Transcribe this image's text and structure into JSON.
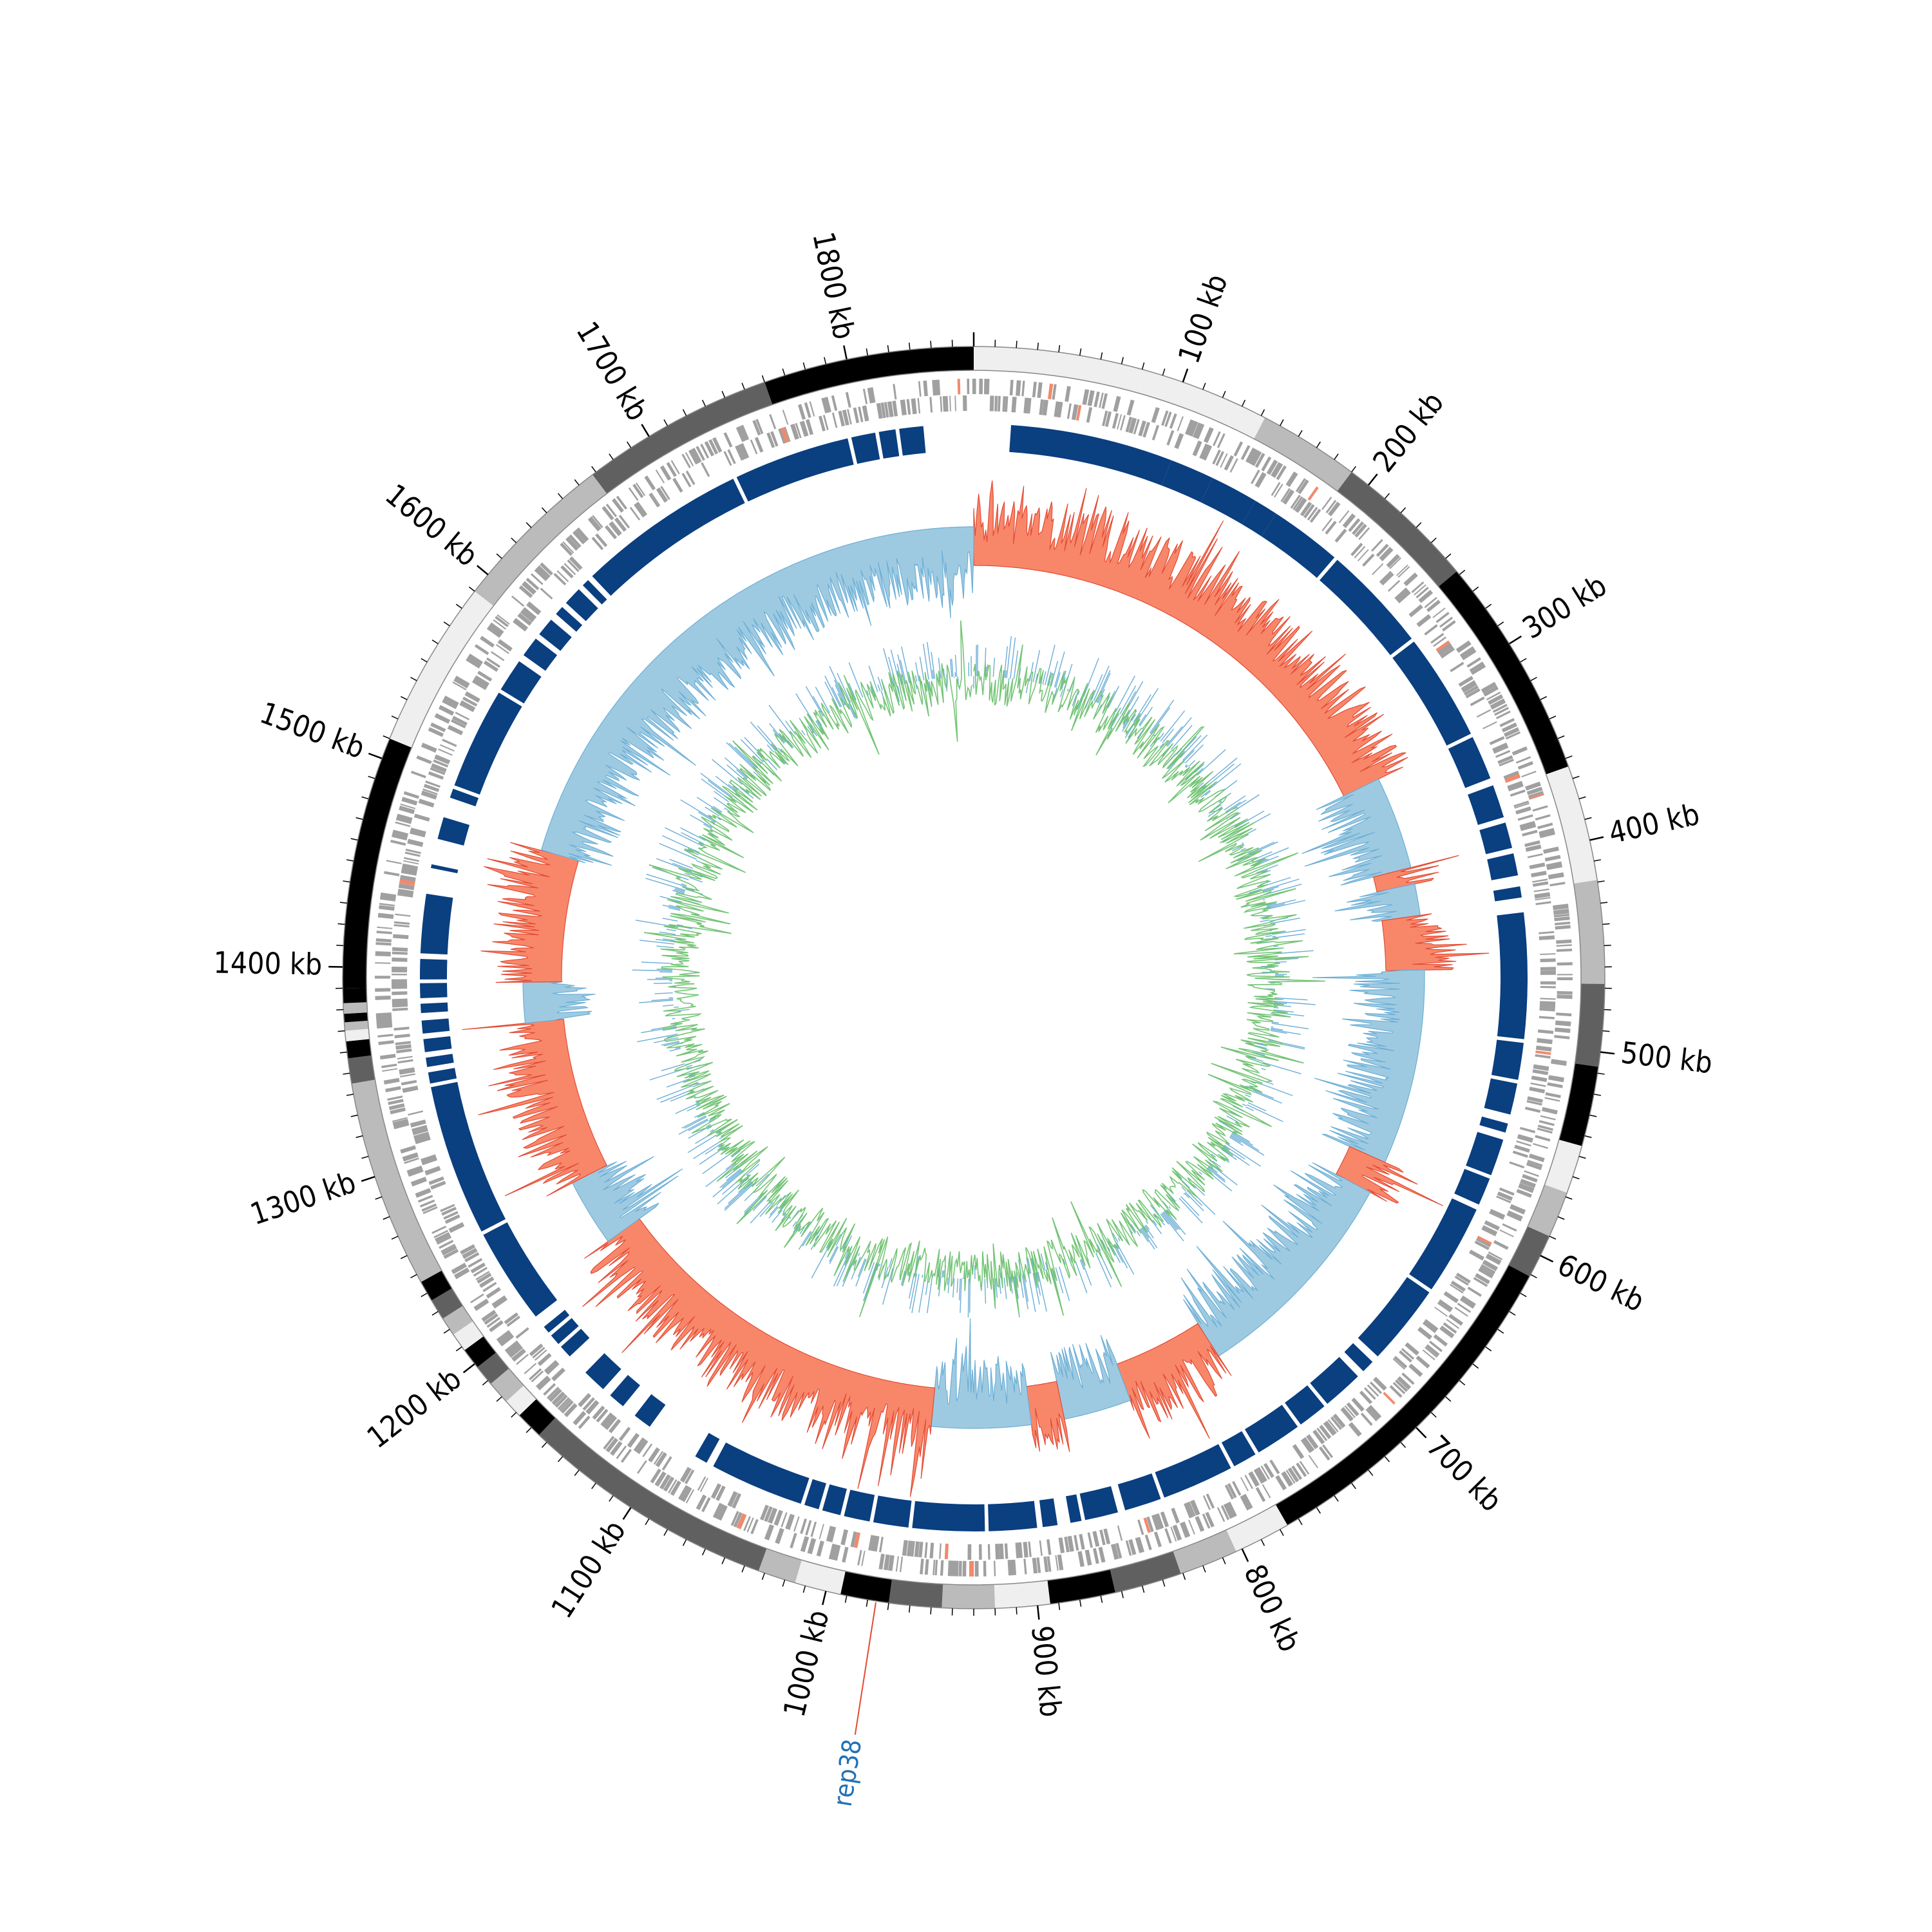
{
  "chart_data": {
    "type": "circular-genome",
    "genome_length_kb": 1860,
    "tick_labels": [
      {
        "kb": 100,
        "label": "100 kb"
      },
      {
        "kb": 200,
        "label": "200 kb"
      },
      {
        "kb": 300,
        "label": "300 kb"
      },
      {
        "kb": 400,
        "label": "400 kb"
      },
      {
        "kb": 500,
        "label": "500 kb"
      },
      {
        "kb": 600,
        "label": "600 kb"
      },
      {
        "kb": 700,
        "label": "700 kb"
      },
      {
        "kb": 800,
        "label": "800 kb"
      },
      {
        "kb": 900,
        "label": "900 kb"
      },
      {
        "kb": 1000,
        "label": "1000 kb"
      },
      {
        "kb": 1100,
        "label": "1100 kb"
      },
      {
        "kb": 1200,
        "label": "1200 kb"
      },
      {
        "kb": 1300,
        "label": "1300 kb"
      },
      {
        "kb": 1400,
        "label": "1400 kb"
      },
      {
        "kb": 1500,
        "label": "1500 kb"
      },
      {
        "kb": 1600,
        "label": "1600 kb"
      },
      {
        "kb": 1700,
        "label": "1700 kb"
      },
      {
        "kb": 1800,
        "label": "1800 kb"
      }
    ],
    "ideogram_bands": [
      {
        "start": 0,
        "end": 142,
        "shade": "#efefef"
      },
      {
        "start": 142,
        "end": 190,
        "shade": "#bbbbbb"
      },
      {
        "start": 190,
        "end": 258,
        "shade": "#606060"
      },
      {
        "start": 258,
        "end": 364,
        "shade": "#000000"
      },
      {
        "start": 364,
        "end": 419,
        "shade": "#efefef"
      },
      {
        "start": 419,
        "end": 468,
        "shade": "#bbbbbb"
      },
      {
        "start": 468,
        "end": 507,
        "shade": "#606060"
      },
      {
        "start": 507,
        "end": 545,
        "shade": "#000000"
      },
      {
        "start": 545,
        "end": 568,
        "shade": "#efefef"
      },
      {
        "start": 568,
        "end": 590,
        "shade": "#bbbbbb"
      },
      {
        "start": 590,
        "end": 611,
        "shade": "#606060"
      },
      {
        "start": 611,
        "end": 776,
        "shade": "#000000"
      },
      {
        "start": 776,
        "end": 803,
        "shade": "#efefef"
      },
      {
        "start": 803,
        "end": 831,
        "shade": "#bbbbbb"
      },
      {
        "start": 831,
        "end": 863,
        "shade": "#606060"
      },
      {
        "start": 863,
        "end": 894,
        "shade": "#000000"
      },
      {
        "start": 894,
        "end": 920,
        "shade": "#efefef"
      },
      {
        "start": 920,
        "end": 945,
        "shade": "#bbbbbb"
      },
      {
        "start": 945,
        "end": 970,
        "shade": "#606060"
      },
      {
        "start": 970,
        "end": 993,
        "shade": "#000000"
      },
      {
        "start": 993,
        "end": 1015,
        "shade": "#efefef"
      },
      {
        "start": 1015,
        "end": 1033,
        "shade": "#bbbbbb"
      },
      {
        "start": 1033,
        "end": 1155,
        "shade": "#606060"
      },
      {
        "start": 1155,
        "end": 1168,
        "shade": "#000000"
      },
      {
        "start": 1168,
        "end": 1177,
        "shade": "#efefef"
      },
      {
        "start": 1177,
        "end": 1188,
        "shade": "#bbbbbb"
      },
      {
        "start": 1188,
        "end": 1198,
        "shade": "#606060"
      },
      {
        "start": 1198,
        "end": 1208,
        "shade": "#000000"
      },
      {
        "start": 1208,
        "end": 1217,
        "shade": "#efefef"
      },
      {
        "start": 1217,
        "end": 1226,
        "shade": "#bbbbbb"
      },
      {
        "start": 1226,
        "end": 1236,
        "shade": "#606060"
      },
      {
        "start": 1236,
        "end": 1246,
        "shade": "#000000"
      },
      {
        "start": 1246,
        "end": 1345,
        "shade": "#bbbbbb"
      },
      {
        "start": 1345,
        "end": 1357,
        "shade": "#606060"
      },
      {
        "start": 1357,
        "end": 1365,
        "shade": "#000000"
      },
      {
        "start": 1365,
        "end": 1370,
        "shade": "#efefef"
      },
      {
        "start": 1370,
        "end": 1374,
        "shade": "#bbbbbb"
      },
      {
        "start": 1374,
        "end": 1378,
        "shade": "#000000"
      },
      {
        "start": 1378,
        "end": 1383,
        "shade": "#bbbbbb"
      },
      {
        "start": 1383,
        "end": 1390,
        "shade": "#000000"
      },
      {
        "start": 1390,
        "end": 1510,
        "shade": "#000000"
      },
      {
        "start": 1510,
        "end": 1590,
        "shade": "#efefef"
      },
      {
        "start": 1590,
        "end": 1668,
        "shade": "#bbbbbb"
      },
      {
        "start": 1668,
        "end": 1760,
        "shade": "#606060"
      },
      {
        "start": 1760,
        "end": 1860,
        "shade": "#000000"
      }
    ],
    "gene_blocks": [
      {
        "start": 20,
        "end": 108
      },
      {
        "start": 108,
        "end": 132
      },
      {
        "start": 132,
        "end": 158
      },
      {
        "start": 158,
        "end": 171
      },
      {
        "start": 171,
        "end": 210
      },
      {
        "start": 212,
        "end": 270
      },
      {
        "start": 272,
        "end": 330
      },
      {
        "start": 332,
        "end": 356
      },
      {
        "start": 360,
        "end": 378
      },
      {
        "start": 381,
        "end": 395
      },
      {
        "start": 398,
        "end": 410
      },
      {
        "start": 416,
        "end": 422
      },
      {
        "start": 430,
        "end": 498
      },
      {
        "start": 500,
        "end": 520
      },
      {
        "start": 522,
        "end": 539
      },
      {
        "start": 544,
        "end": 549
      },
      {
        "start": 553,
        "end": 573
      },
      {
        "start": 575,
        "end": 590
      },
      {
        "start": 593,
        "end": 642
      },
      {
        "start": 644,
        "end": 688
      },
      {
        "start": 692,
        "end": 699
      },
      {
        "start": 703,
        "end": 725
      },
      {
        "start": 727,
        "end": 743
      },
      {
        "start": 745,
        "end": 770
      },
      {
        "start": 772,
        "end": 785
      },
      {
        "start": 787,
        "end": 826
      },
      {
        "start": 828,
        "end": 848
      },
      {
        "start": 852,
        "end": 870
      },
      {
        "start": 872,
        "end": 878
      },
      {
        "start": 885,
        "end": 893
      },
      {
        "start": 896,
        "end": 922
      },
      {
        "start": 924,
        "end": 963
      },
      {
        "start": 965,
        "end": 984
      },
      {
        "start": 986,
        "end": 1000
      },
      {
        "start": 1002,
        "end": 1012
      },
      {
        "start": 1014,
        "end": 1022
      },
      {
        "start": 1024,
        "end": 1075
      },
      {
        "start": 1079,
        "end": 1086
      },
      {
        "start": 1115,
        "end": 1125
      },
      {
        "start": 1133,
        "end": 1142
      },
      {
        "start": 1147,
        "end": 1160
      },
      {
        "start": 1172,
        "end": 1179
      },
      {
        "start": 1181,
        "end": 1187
      },
      {
        "start": 1189,
        "end": 1193
      },
      {
        "start": 1200,
        "end": 1252
      },
      {
        "start": 1254,
        "end": 1336
      },
      {
        "start": 1338,
        "end": 1344
      },
      {
        "start": 1347,
        "end": 1352
      },
      {
        "start": 1355,
        "end": 1362
      },
      {
        "start": 1365,
        "end": 1372
      },
      {
        "start": 1376,
        "end": 1381
      },
      {
        "start": 1384,
        "end": 1392
      },
      {
        "start": 1394,
        "end": 1405
      },
      {
        "start": 1408,
        "end": 1440
      },
      {
        "start": 1454,
        "end": 1456
      },
      {
        "start": 1470,
        "end": 1482
      },
      {
        "start": 1493,
        "end": 1498
      },
      {
        "start": 1500,
        "end": 1555
      },
      {
        "start": 1557,
        "end": 1575
      },
      {
        "start": 1579,
        "end": 1590
      },
      {
        "start": 1593,
        "end": 1603
      },
      {
        "start": 1607,
        "end": 1612
      },
      {
        "start": 1615,
        "end": 1625
      },
      {
        "start": 1628,
        "end": 1632
      },
      {
        "start": 1635,
        "end": 1727
      },
      {
        "start": 1729,
        "end": 1792
      },
      {
        "start": 1794,
        "end": 1807
      },
      {
        "start": 1809,
        "end": 1818
      },
      {
        "start": 1820,
        "end": 1833
      }
    ],
    "skew_regions": [
      {
        "start": 0,
        "end": 330,
        "sign": "pos"
      },
      {
        "start": 330,
        "end": 392,
        "sign": "neg"
      },
      {
        "start": 392,
        "end": 403,
        "sign": "pos"
      },
      {
        "start": 403,
        "end": 424,
        "sign": "neg"
      },
      {
        "start": 424,
        "end": 460,
        "sign": "pos"
      },
      {
        "start": 460,
        "end": 590,
        "sign": "neg"
      },
      {
        "start": 590,
        "end": 612,
        "sign": "pos"
      },
      {
        "start": 612,
        "end": 760,
        "sign": "neg"
      },
      {
        "start": 760,
        "end": 825,
        "sign": "pos"
      },
      {
        "start": 825,
        "end": 870,
        "sign": "neg"
      },
      {
        "start": 870,
        "end": 892,
        "sign": "pos"
      },
      {
        "start": 892,
        "end": 958,
        "sign": "neg"
      },
      {
        "start": 958,
        "end": 1210,
        "sign": "pos"
      },
      {
        "start": 1210,
        "end": 1255,
        "sign": "neg"
      },
      {
        "start": 1255,
        "end": 1365,
        "sign": "pos"
      },
      {
        "start": 1365,
        "end": 1392,
        "sign": "neg"
      },
      {
        "start": 1392,
        "end": 1480,
        "sign": "pos"
      },
      {
        "start": 1480,
        "end": 1860,
        "sign": "neg"
      }
    ],
    "annotations": [
      {
        "text": "rep38",
        "kb": 976
      }
    ],
    "colors": {
      "gene_block": "#0a3f80",
      "gene_ticks": "#a0a0a0",
      "gene_ticks_highlight": "#f08a6e",
      "skew_positive": "#f8876a",
      "skew_negative": "#9ecae1",
      "skew_outline_positive": "#e34a33",
      "skew_outline_negative": "#6baed6",
      "gc_content": "#74c476",
      "gc_dip": "#6baed6",
      "annotation_line": "#e34a33",
      "annotation_text": "#2171b5",
      "ring_outline": "#888888"
    }
  }
}
